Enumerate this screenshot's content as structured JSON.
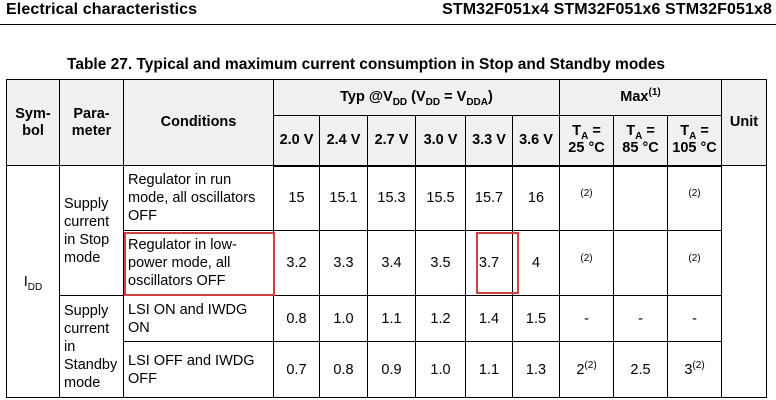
{
  "header": {
    "left": "Electrical characteristics",
    "right": "STM32F051x4 STM32F051x6 STM32F051x8"
  },
  "caption": "Table 27. Typical and maximum current consumption in Stop and Standby modes",
  "columns": {
    "symbol": "Sym-\nbol",
    "parameter": "Para-\nmeter",
    "conditions": "Conditions",
    "typ_prefix": "Typ @V",
    "typ_sub": "DD",
    "typ_mid": " (V",
    "typ_sub2": "DD",
    "typ_eq": " = V",
    "typ_sub3": "DDA",
    "typ_end": ")",
    "max_label": "Max",
    "max_sup": "(1)",
    "unit": "Unit",
    "voltages": [
      "2.0 V",
      "2.4 V",
      "2.7 V",
      "3.0 V",
      "3.3 V",
      "3.6 V"
    ],
    "temps": [
      {
        "t": "T",
        "sub": "A",
        "eq": " =",
        "val": "25 °C"
      },
      {
        "t": "T",
        "sub": "A",
        "eq": " =",
        "val": "85 °C"
      },
      {
        "t": "T",
        "sub": "A",
        "eq": " =",
        "val": "105 °C"
      }
    ]
  },
  "symbol": {
    "main": "I",
    "sub": "DD"
  },
  "param_stop": "Supply current in Stop mode",
  "param_standby": "Supply current in Standby mode",
  "rows": [
    {
      "condition": "Regulator in run mode, all oscillators OFF",
      "typ": [
        "15",
        "15.1",
        "15.3",
        "15.5",
        "15.7",
        "16"
      ],
      "max": [
        "(2)",
        "",
        "(2)"
      ]
    },
    {
      "condition": "Regulator in low-power mode, all oscillators OFF",
      "typ": [
        "3.2",
        "3.3",
        "3.4",
        "3.5",
        "3.7",
        "4"
      ],
      "max": [
        "(2)",
        "",
        "(2)"
      ]
    },
    {
      "condition": "LSI ON and IWDG ON",
      "typ": [
        "0.8",
        "1.0",
        "1.1",
        "1.2",
        "1.4",
        "1.5"
      ],
      "max": [
        "-",
        "-",
        "-"
      ]
    },
    {
      "condition": "LSI OFF and IWDG OFF",
      "typ": [
        "0.7",
        "0.8",
        "0.9",
        "1.0",
        "1.1",
        "1.3"
      ],
      "max": [
        {
          "v": "2",
          "sup": "(2)"
        },
        {
          "v": "2.5",
          "sup": ""
        },
        {
          "v": "3",
          "sup": "(2)"
        }
      ]
    }
  ],
  "highlight_color": "#d43f3f"
}
